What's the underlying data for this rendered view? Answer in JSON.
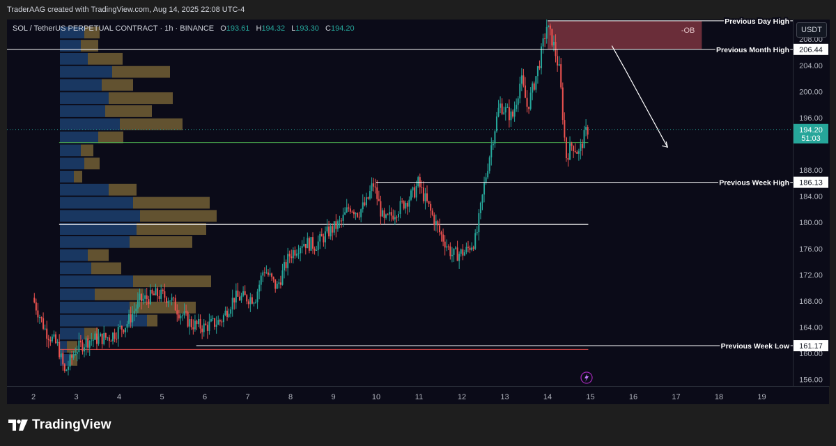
{
  "credit": "TraderAAG created with TradingView.com, Aug 14, 2025 22:08 UTC-4",
  "symbol": {
    "title": "SOL / TetherUS PERPETUAL CONTRACT · 1h · BINANCE",
    "o_label": "O",
    "o": "193.61",
    "h_label": "H",
    "h": "194.32",
    "l_label": "L",
    "l": "193.30",
    "c_label": "C",
    "c": "194.20"
  },
  "currency": "USDT",
  "logo": "TradingView",
  "colors": {
    "bull": "#26a69a",
    "bear": "#ef5350",
    "ob_zone": "#8b3a44",
    "vp_blue": "#1c3f6e",
    "vp_tan": "#6b5a33"
  },
  "chart_data": {
    "type": "candlestick",
    "instrument": "SOL / TetherUS PERPETUAL CONTRACT",
    "timeframe": "1h",
    "exchange": "BINANCE",
    "ylim": [
      155,
      211
    ],
    "x_ticks": [
      "2",
      "3",
      "4",
      "5",
      "6",
      "7",
      "8",
      "9",
      "10",
      "11",
      "12",
      "13",
      "14",
      "15",
      "16",
      "17",
      "18",
      "19"
    ],
    "y_ticks": [
      "156.00",
      "160.00",
      "164.00",
      "168.00",
      "172.00",
      "176.00",
      "180.00",
      "184.00",
      "188.00",
      "196.00",
      "200.00",
      "204.00",
      "208.00"
    ],
    "price_labels": [
      {
        "text": "194.20",
        "sub": "51:03",
        "value": 194.2,
        "style": "current"
      },
      {
        "text": "206.44",
        "value": 206.44,
        "style": "level"
      },
      {
        "text": "186.13",
        "value": 186.13,
        "style": "level"
      },
      {
        "text": "161.17",
        "value": 161.17,
        "style": "level"
      }
    ],
    "levels": [
      {
        "name": "Previous Day High",
        "value": 210.8
      },
      {
        "name": "Previous Month High",
        "value": 206.44
      },
      {
        "name": "Previous Week High",
        "value": 186.13
      },
      {
        "name": "Previous Week Low",
        "value": 161.17
      }
    ],
    "zones": [
      {
        "label": "-OB",
        "from_day": 14.0,
        "to_day": 17.6,
        "low": 206.5,
        "high": 210.8
      }
    ],
    "path": [
      [
        2.0,
        168.5
      ],
      [
        2.3,
        163.5
      ],
      [
        2.6,
        161.0
      ],
      [
        2.75,
        157.0
      ],
      [
        3.0,
        160.5
      ],
      [
        3.3,
        162.0
      ],
      [
        3.8,
        162.5
      ],
      [
        4.2,
        164.5
      ],
      [
        4.5,
        168.0
      ],
      [
        4.9,
        169.0
      ],
      [
        5.2,
        168.5
      ],
      [
        5.4,
        166.5
      ],
      [
        5.7,
        164.5
      ],
      [
        6.0,
        164.0
      ],
      [
        6.4,
        165.0
      ],
      [
        6.7,
        168.5
      ],
      [
        7.2,
        168.5
      ],
      [
        7.4,
        173.0
      ],
      [
        7.7,
        170.0
      ],
      [
        8.0,
        175.0
      ],
      [
        8.3,
        177.0
      ],
      [
        8.6,
        176.5
      ],
      [
        8.9,
        178.5
      ],
      [
        9.2,
        180.0
      ],
      [
        9.4,
        182.5
      ],
      [
        9.6,
        181.5
      ],
      [
        9.8,
        183.0
      ],
      [
        9.95,
        186.0
      ],
      [
        10.2,
        180.0
      ],
      [
        10.6,
        182.5
      ],
      [
        10.9,
        184.5
      ],
      [
        11.0,
        186.0
      ],
      [
        11.2,
        183.0
      ],
      [
        11.5,
        178.5
      ],
      [
        11.8,
        175.0
      ],
      [
        12.1,
        175.5
      ],
      [
        12.35,
        177.5
      ],
      [
        12.55,
        186.0
      ],
      [
        12.7,
        191.5
      ],
      [
        12.9,
        198.0
      ],
      [
        13.2,
        196.0
      ],
      [
        13.4,
        202.0
      ],
      [
        13.55,
        197.5
      ],
      [
        13.7,
        201.0
      ],
      [
        13.85,
        205.0
      ],
      [
        14.0,
        210.0
      ],
      [
        14.15,
        207.5
      ],
      [
        14.3,
        203.0
      ],
      [
        14.38,
        196.0
      ],
      [
        14.45,
        190.0
      ],
      [
        14.6,
        192.0
      ],
      [
        14.75,
        190.5
      ],
      [
        14.9,
        193.61
      ],
      [
        14.95,
        194.2
      ]
    ],
    "arrow_path": [
      [
        14.0,
        210.8
      ],
      [
        15.5,
        207.0
      ],
      [
        15.8,
        203.5
      ],
      [
        16.8,
        191.5
      ]
    ],
    "volume_profile": [
      {
        "price": 209.0,
        "buy": 35,
        "sell": 22
      },
      {
        "price": 207.0,
        "buy": 30,
        "sell": 25
      },
      {
        "price": 205.0,
        "buy": 40,
        "sell": 50
      },
      {
        "price": 203.0,
        "buy": 75,
        "sell": 83
      },
      {
        "price": 201.0,
        "buy": 60,
        "sell": 45
      },
      {
        "price": 199.0,
        "buy": 70,
        "sell": 92
      },
      {
        "price": 197.0,
        "buy": 65,
        "sell": 67
      },
      {
        "price": 195.0,
        "buy": 86,
        "sell": 90
      },
      {
        "price": 193.0,
        "buy": 55,
        "sell": 36
      },
      {
        "price": 191.0,
        "buy": 30,
        "sell": 18
      },
      {
        "price": 189.0,
        "buy": 35,
        "sell": 22
      },
      {
        "price": 187.0,
        "buy": 20,
        "sell": 12
      },
      {
        "price": 185.0,
        "buy": 70,
        "sell": 40
      },
      {
        "price": 183.0,
        "buy": 105,
        "sell": 110
      },
      {
        "price": 181.0,
        "buy": 115,
        "sell": 110
      },
      {
        "price": 179.0,
        "buy": 110,
        "sell": 100
      },
      {
        "price": 177.0,
        "buy": 100,
        "sell": 90
      },
      {
        "price": 175.0,
        "buy": 40,
        "sell": 30
      },
      {
        "price": 173.0,
        "buy": 45,
        "sell": 43
      },
      {
        "price": 171.0,
        "buy": 105,
        "sell": 112
      },
      {
        "price": 169.0,
        "buy": 50,
        "sell": 70
      },
      {
        "price": 167.0,
        "buy": 100,
        "sell": 95
      },
      {
        "price": 165.0,
        "buy": 125,
        "sell": 15
      },
      {
        "price": 163.0,
        "buy": 35,
        "sell": 20
      },
      {
        "price": 161.0,
        "buy": 10,
        "sell": 15
      },
      {
        "price": 159.0,
        "buy": 15,
        "sell": 10
      }
    ],
    "mid_lines": [
      {
        "price": 179.7,
        "from_day": 2.6,
        "to_day": 14.95,
        "color": "#ffffff"
      },
      {
        "price": 192.2,
        "from_day": 2.6,
        "to_day": 14.95,
        "color": "#4caf50"
      },
      {
        "price": 160.6,
        "from_day": 2.6,
        "to_day": 14.95,
        "color": "#ef5350"
      }
    ]
  }
}
